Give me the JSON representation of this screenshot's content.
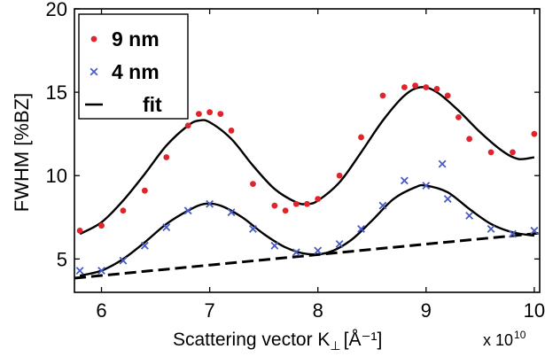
{
  "chart_data": {
    "type": "scatter",
    "xlabel": "Scattering vector K",
    "xlabel_sub": "⊥",
    "xlabel_unit": "[Å⁻¹]",
    "x_multiplier": "x 10",
    "x_multiplier_exp": "10",
    "ylabel": "FWHM [%BZ]",
    "xlim": [
      5.75,
      10.05
    ],
    "ylim": [
      3.0,
      20.0
    ],
    "x_ticks": [
      6,
      7,
      8,
      9,
      10
    ],
    "x_tick_labels": [
      "6",
      "7",
      "8",
      "9",
      "10"
    ],
    "y_ticks": [
      5,
      10,
      15,
      20
    ],
    "y_tick_labels": [
      "5",
      "10",
      "15",
      "20"
    ],
    "grid": false,
    "legend_position": "top-left",
    "colors": {
      "red": "#e0242c",
      "blue": "#4a5cc2",
      "fit": "#000000"
    },
    "series": [
      {
        "name": "9 nm",
        "marker": "dot",
        "color": "#e0242c",
        "points": [
          [
            5.8,
            6.7
          ],
          [
            6.0,
            7.0
          ],
          [
            6.2,
            7.9
          ],
          [
            6.4,
            9.1
          ],
          [
            6.6,
            11.1
          ],
          [
            6.8,
            13.0
          ],
          [
            6.9,
            13.7
          ],
          [
            7.0,
            13.8
          ],
          [
            7.1,
            13.7
          ],
          [
            7.2,
            12.7
          ],
          [
            7.4,
            9.5
          ],
          [
            7.6,
            8.2
          ],
          [
            7.7,
            7.9
          ],
          [
            7.8,
            8.3
          ],
          [
            7.9,
            8.3
          ],
          [
            8.0,
            8.6
          ],
          [
            8.2,
            10.0
          ],
          [
            8.4,
            12.3
          ],
          [
            8.6,
            14.8
          ],
          [
            8.8,
            15.3
          ],
          [
            8.9,
            15.4
          ],
          [
            9.0,
            15.3
          ],
          [
            9.1,
            15.2
          ],
          [
            9.2,
            14.8
          ],
          [
            9.3,
            13.5
          ],
          [
            9.4,
            12.2
          ],
          [
            9.6,
            11.4
          ],
          [
            9.8,
            11.4
          ],
          [
            10.0,
            12.5
          ]
        ]
      },
      {
        "name": "4 nm",
        "marker": "x",
        "color": "#4a5cc2",
        "points": [
          [
            5.8,
            4.3
          ],
          [
            6.0,
            4.3
          ],
          [
            6.2,
            4.9
          ],
          [
            6.4,
            5.8
          ],
          [
            6.6,
            6.9
          ],
          [
            6.8,
            7.9
          ],
          [
            7.0,
            8.3
          ],
          [
            7.2,
            7.8
          ],
          [
            7.4,
            6.8
          ],
          [
            7.6,
            5.8
          ],
          [
            7.8,
            5.4
          ],
          [
            8.0,
            5.5
          ],
          [
            8.2,
            5.9
          ],
          [
            8.4,
            6.8
          ],
          [
            8.6,
            8.2
          ],
          [
            8.8,
            9.7
          ],
          [
            9.0,
            9.4
          ],
          [
            9.15,
            10.7
          ],
          [
            9.2,
            8.6
          ],
          [
            9.4,
            7.6
          ],
          [
            9.6,
            6.8
          ],
          [
            9.8,
            6.5
          ],
          [
            10.0,
            6.7
          ]
        ]
      }
    ],
    "fit_label": "fit",
    "fits": [
      {
        "style": "solid",
        "points": [
          [
            5.8,
            6.5
          ],
          [
            6.0,
            7.2
          ],
          [
            6.2,
            8.5
          ],
          [
            6.4,
            10.1
          ],
          [
            6.6,
            11.8
          ],
          [
            6.8,
            13.0
          ],
          [
            6.9,
            13.3
          ],
          [
            7.0,
            13.2
          ],
          [
            7.2,
            12.2
          ],
          [
            7.4,
            10.6
          ],
          [
            7.6,
            9.2
          ],
          [
            7.8,
            8.4
          ],
          [
            7.9,
            8.3
          ],
          [
            8.0,
            8.5
          ],
          [
            8.2,
            9.6
          ],
          [
            8.4,
            11.4
          ],
          [
            8.6,
            13.3
          ],
          [
            8.8,
            14.8
          ],
          [
            8.95,
            15.3
          ],
          [
            9.1,
            15.0
          ],
          [
            9.3,
            13.9
          ],
          [
            9.5,
            12.6
          ],
          [
            9.7,
            11.5
          ],
          [
            9.85,
            11.0
          ],
          [
            10.0,
            11.1
          ]
        ]
      },
      {
        "style": "solid",
        "points": [
          [
            5.8,
            4.0
          ],
          [
            6.0,
            4.3
          ],
          [
            6.2,
            5.0
          ],
          [
            6.4,
            6.0
          ],
          [
            6.6,
            7.1
          ],
          [
            6.8,
            7.9
          ],
          [
            6.95,
            8.3
          ],
          [
            7.1,
            8.2
          ],
          [
            7.3,
            7.5
          ],
          [
            7.5,
            6.5
          ],
          [
            7.7,
            5.7
          ],
          [
            7.9,
            5.3
          ],
          [
            8.1,
            5.4
          ],
          [
            8.3,
            6.1
          ],
          [
            8.5,
            7.3
          ],
          [
            8.7,
            8.6
          ],
          [
            8.9,
            9.3
          ],
          [
            9.0,
            9.4
          ],
          [
            9.2,
            9.0
          ],
          [
            9.4,
            8.0
          ],
          [
            9.6,
            7.1
          ],
          [
            9.8,
            6.6
          ],
          [
            10.0,
            6.4
          ]
        ]
      },
      {
        "style": "dashed",
        "points": [
          [
            5.75,
            3.85
          ],
          [
            10.05,
            6.55
          ]
        ]
      }
    ]
  }
}
